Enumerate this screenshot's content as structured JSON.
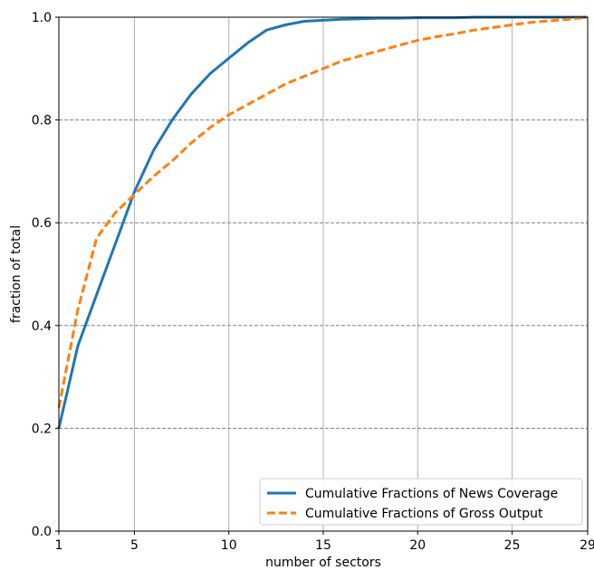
{
  "chart_data": {
    "type": "line",
    "title": "",
    "xlabel": "number of sectors",
    "ylabel": "fraction of total",
    "xlim": [
      1,
      29
    ],
    "ylim": [
      0.0,
      1.0
    ],
    "xticks": [
      1,
      5,
      10,
      15,
      20,
      25,
      29
    ],
    "xtick_labels": [
      "1",
      "5",
      "10",
      "15",
      "20",
      "25",
      "29"
    ],
    "yticks": [
      0.0,
      0.2,
      0.4,
      0.6,
      0.8,
      1.0
    ],
    "ytick_labels": [
      "0.0",
      "0.2",
      "0.4",
      "0.6",
      "0.8",
      "1.0"
    ],
    "grid": {
      "x": "solid-gray",
      "y": "dashed-gray"
    },
    "legend_position": "lower-right",
    "series": [
      {
        "name": "Cumulative Fractions of News Coverage",
        "color": "#1f77b4",
        "style": "solid",
        "x": [
          1,
          2,
          3,
          4,
          5,
          6,
          7,
          8,
          9,
          10,
          11,
          12,
          13,
          14,
          15,
          16,
          17,
          18,
          19,
          20,
          21,
          22,
          23,
          24,
          25,
          26,
          27,
          28,
          29
        ],
        "y": [
          0.2,
          0.36,
          0.46,
          0.56,
          0.66,
          0.74,
          0.8,
          0.85,
          0.89,
          0.92,
          0.95,
          0.975,
          0.985,
          0.992,
          0.994,
          0.996,
          0.997,
          0.998,
          0.998,
          0.999,
          0.999,
          0.999,
          1.0,
          1.0,
          1.0,
          1.0,
          1.0,
          1.0,
          1.0
        ]
      },
      {
        "name": "Cumulative Fractions of Gross Output",
        "color": "#ff7f0e",
        "style": "dashed",
        "x": [
          1,
          2,
          3,
          4,
          5,
          6,
          7,
          8,
          9,
          10,
          11,
          12,
          13,
          14,
          15,
          16,
          17,
          18,
          19,
          20,
          21,
          22,
          23,
          24,
          25,
          26,
          27,
          28,
          29
        ],
        "y": [
          0.24,
          0.43,
          0.57,
          0.62,
          0.655,
          0.69,
          0.72,
          0.755,
          0.785,
          0.81,
          0.83,
          0.85,
          0.87,
          0.885,
          0.9,
          0.915,
          0.925,
          0.935,
          0.945,
          0.955,
          0.962,
          0.968,
          0.975,
          0.98,
          0.985,
          0.99,
          0.993,
          0.996,
          1.0
        ]
      }
    ]
  }
}
